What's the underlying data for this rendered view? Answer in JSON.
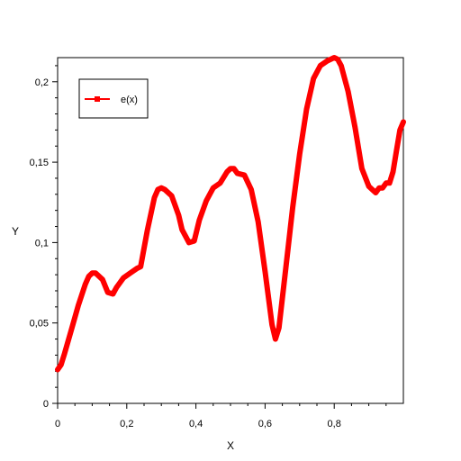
{
  "chart_data": {
    "type": "line",
    "xlabel": "X",
    "ylabel": "Y",
    "xlim": [
      0,
      1
    ],
    "ylim": [
      0,
      0.215
    ],
    "x_ticks": [
      {
        "value": 0,
        "label": "0"
      },
      {
        "value": 0.2,
        "label": "0,2"
      },
      {
        "value": 0.4,
        "label": "0,4"
      },
      {
        "value": 0.6,
        "label": "0,6"
      },
      {
        "value": 0.8,
        "label": "0,8"
      }
    ],
    "y_ticks": [
      {
        "value": 0,
        "label": "0"
      },
      {
        "value": 0.05,
        "label": "0,05"
      },
      {
        "value": 0.1,
        "label": "0,1"
      },
      {
        "value": 0.15,
        "label": "0,15"
      },
      {
        "value": 0.2,
        "label": "0,2"
      }
    ],
    "grid": false,
    "legend": {
      "placement": "top-left"
    },
    "series": [
      {
        "name": "e(x)",
        "color": "#ff0000",
        "marker": "square",
        "x": [
          0,
          0.01,
          0.02,
          0.04,
          0.06,
          0.08,
          0.09,
          0.1,
          0.11,
          0.13,
          0.145,
          0.16,
          0.17,
          0.19,
          0.21,
          0.23,
          0.24,
          0.26,
          0.28,
          0.29,
          0.3,
          0.31,
          0.33,
          0.35,
          0.36,
          0.38,
          0.395,
          0.41,
          0.43,
          0.45,
          0.47,
          0.49,
          0.5,
          0.51,
          0.52,
          0.54,
          0.56,
          0.58,
          0.6,
          0.62,
          0.63,
          0.64,
          0.66,
          0.68,
          0.7,
          0.72,
          0.74,
          0.76,
          0.78,
          0.8,
          0.81,
          0.82,
          0.84,
          0.86,
          0.88,
          0.9,
          0.91,
          0.92,
          0.93,
          0.94,
          0.95,
          0.96,
          0.97,
          0.98,
          0.99,
          1.0
        ],
        "y": [
          0.021,
          0.024,
          0.031,
          0.046,
          0.061,
          0.074,
          0.079,
          0.081,
          0.081,
          0.077,
          0.069,
          0.068,
          0.072,
          0.078,
          0.081,
          0.084,
          0.085,
          0.108,
          0.128,
          0.133,
          0.134,
          0.133,
          0.129,
          0.117,
          0.108,
          0.1,
          0.101,
          0.114,
          0.126,
          0.134,
          0.137,
          0.144,
          0.146,
          0.146,
          0.143,
          0.142,
          0.133,
          0.113,
          0.082,
          0.049,
          0.04,
          0.047,
          0.084,
          0.122,
          0.155,
          0.183,
          0.202,
          0.21,
          0.213,
          0.215,
          0.214,
          0.21,
          0.194,
          0.172,
          0.146,
          0.135,
          0.133,
          0.131,
          0.134,
          0.134,
          0.137,
          0.137,
          0.144,
          0.157,
          0.17,
          0.175
        ]
      }
    ]
  }
}
